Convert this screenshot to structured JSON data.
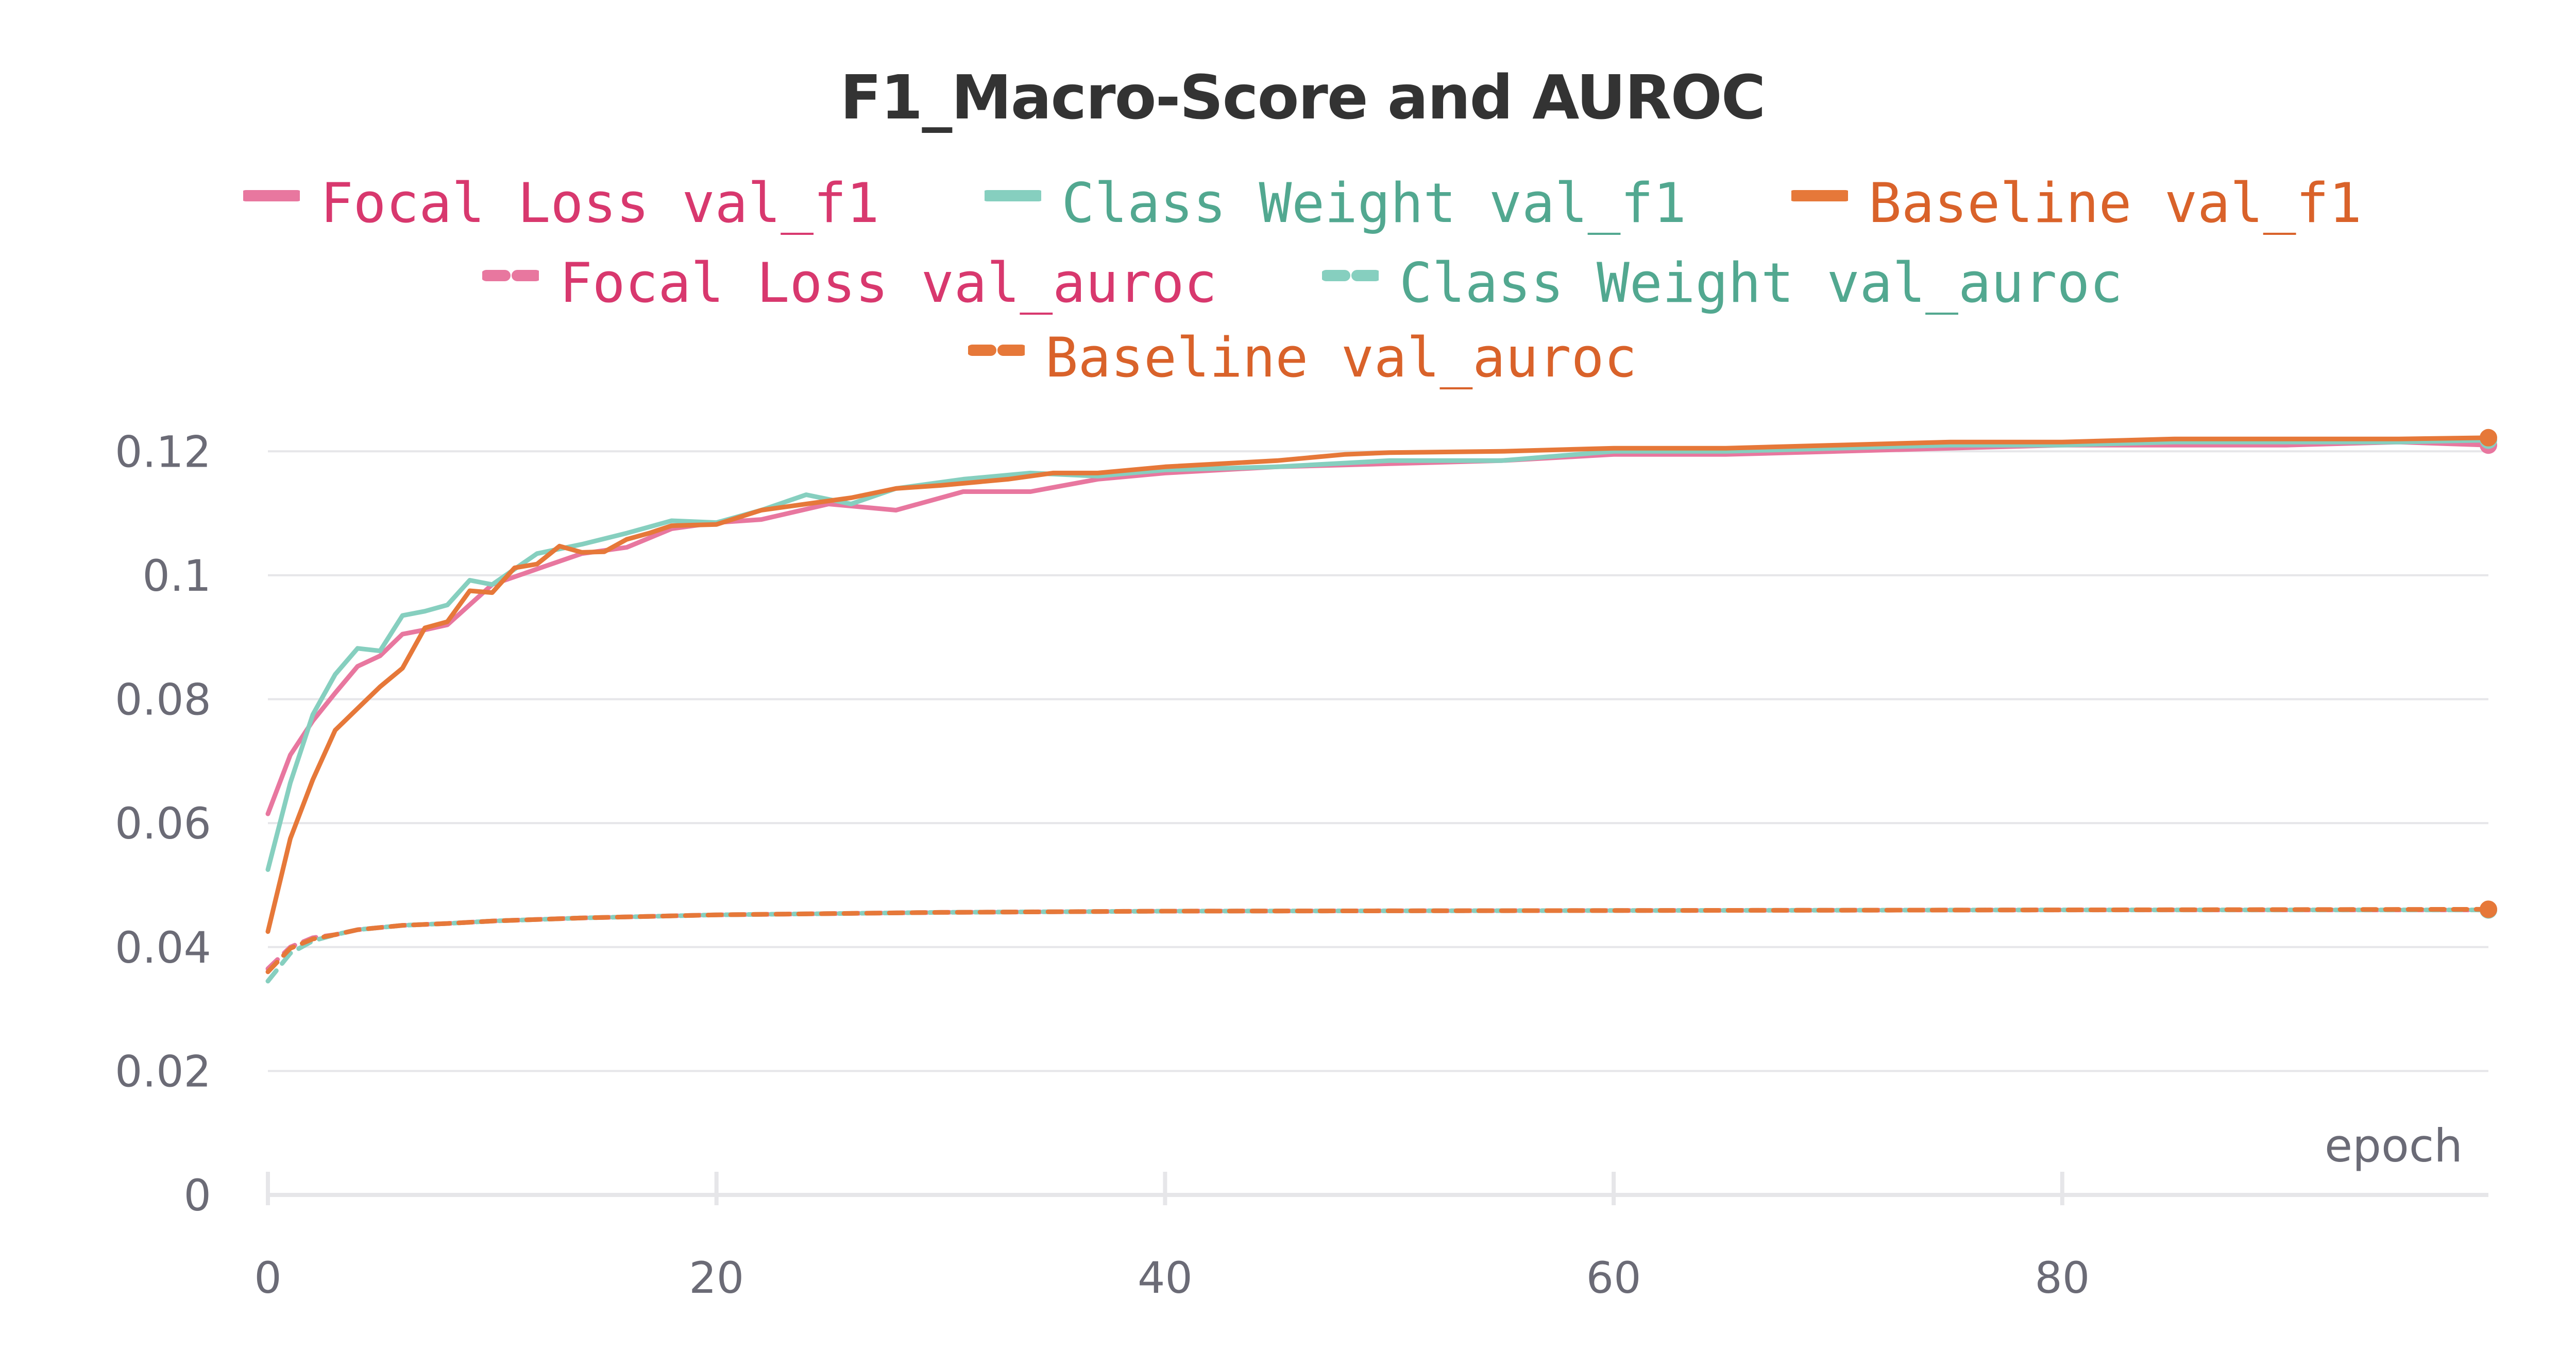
{
  "chart_data": {
    "type": "line",
    "title": "F1_Macro-Score and AUROC",
    "xlabel": "epoch",
    "ylabel": "",
    "xlim": [
      0,
      99
    ],
    "ylim": [
      0,
      0.128
    ],
    "x_ticks": [
      "0",
      "20",
      "40",
      "60",
      "80"
    ],
    "x_tick_values": [
      0,
      20,
      40,
      60,
      80
    ],
    "y_ticks": [
      "0",
      "0.02",
      "0.04",
      "0.06",
      "0.08",
      "0.1",
      "0.12"
    ],
    "y_tick_values": [
      0,
      0.02,
      0.04,
      0.06,
      0.08,
      0.1,
      0.12
    ],
    "grid": "horizontal",
    "legend_position": "top",
    "colors": {
      "focal": "#e8779f",
      "focal_text": "#d8386e",
      "class": "#86cfbf",
      "class_text": "#52a890",
      "baseline": "#e67839",
      "baseline_text": "#d9622a"
    },
    "series": [
      {
        "name": "Focal Loss val_f1",
        "color_key": "focal",
        "dash": false,
        "x": [
          0,
          1,
          2,
          3,
          4,
          5,
          6,
          7,
          8,
          10,
          12,
          14,
          16,
          18,
          20,
          22,
          25,
          28,
          31,
          34,
          37,
          40,
          45,
          50,
          55,
          60,
          65,
          70,
          75,
          80,
          85,
          90,
          95,
          99
        ],
        "y": [
          0.0615,
          0.071,
          0.0765,
          0.081,
          0.0853,
          0.087,
          0.0905,
          0.0912,
          0.092,
          0.0985,
          0.101,
          0.1035,
          0.1045,
          0.1075,
          0.1085,
          0.109,
          0.1115,
          0.1105,
          0.1135,
          0.1135,
          0.1155,
          0.1165,
          0.1175,
          0.118,
          0.1185,
          0.1195,
          0.1195,
          0.12,
          0.1205,
          0.121,
          0.121,
          0.121,
          0.1215,
          0.121
        ]
      },
      {
        "name": "Class Weight val_f1",
        "color_key": "class",
        "dash": false,
        "x": [
          0,
          1,
          2,
          3,
          4,
          5,
          6,
          7,
          8,
          9,
          10,
          12,
          14,
          16,
          18,
          20,
          22,
          24,
          26,
          28,
          31,
          34,
          37,
          40,
          45,
          50,
          55,
          60,
          65,
          70,
          75,
          80,
          85,
          90,
          95,
          99
        ],
        "y": [
          0.0525,
          0.0665,
          0.0775,
          0.084,
          0.0882,
          0.0878,
          0.0935,
          0.0942,
          0.0952,
          0.0992,
          0.0985,
          0.1035,
          0.105,
          0.1068,
          0.1088,
          0.1085,
          0.1105,
          0.113,
          0.1115,
          0.114,
          0.1155,
          0.1165,
          0.116,
          0.117,
          0.1175,
          0.1185,
          0.1185,
          0.12,
          0.12,
          0.1205,
          0.121,
          0.121,
          0.1215,
          0.1215,
          0.1215,
          0.1218
        ]
      },
      {
        "name": "Baseline val_f1",
        "color_key": "baseline",
        "dash": false,
        "x": [
          0,
          1,
          2,
          3,
          4,
          5,
          6,
          7,
          8,
          9,
          10,
          11,
          12,
          13,
          14,
          15,
          16,
          17,
          18,
          20,
          22,
          24,
          26,
          28,
          30,
          33,
          35,
          37,
          40,
          45,
          48,
          50,
          55,
          60,
          65,
          70,
          75,
          80,
          85,
          90,
          95,
          99
        ],
        "y": [
          0.0425,
          0.0575,
          0.067,
          0.075,
          0.0785,
          0.082,
          0.085,
          0.0915,
          0.0925,
          0.0975,
          0.0972,
          0.1012,
          0.1018,
          0.1047,
          0.1037,
          0.1038,
          0.1058,
          0.1068,
          0.108,
          0.1082,
          0.1105,
          0.1115,
          0.1125,
          0.114,
          0.1145,
          0.1155,
          0.1165,
          0.1165,
          0.1175,
          0.1185,
          0.1195,
          0.1198,
          0.12,
          0.1205,
          0.1205,
          0.121,
          0.1215,
          0.1215,
          0.122,
          0.122,
          0.122,
          0.1222
        ]
      },
      {
        "name": "Focal Loss val_auroc",
        "color_key": "focal",
        "dash": true,
        "x": [
          0,
          1,
          2,
          3,
          4,
          6,
          8,
          10,
          14,
          20,
          30,
          40,
          60,
          80,
          99
        ],
        "y": [
          0.0365,
          0.04,
          0.0415,
          0.042,
          0.0428,
          0.0435,
          0.0438,
          0.0442,
          0.0447,
          0.0452,
          0.0456,
          0.0458,
          0.0459,
          0.046,
          0.046
        ]
      },
      {
        "name": "Class Weight val_auroc",
        "color_key": "class",
        "dash": true,
        "x": [
          0,
          1,
          2,
          3,
          4,
          6,
          8,
          10,
          14,
          20,
          30,
          40,
          60,
          80,
          99
        ],
        "y": [
          0.0345,
          0.039,
          0.041,
          0.042,
          0.0428,
          0.0435,
          0.0438,
          0.0442,
          0.0447,
          0.0452,
          0.0456,
          0.0458,
          0.0459,
          0.046,
          0.046
        ]
      },
      {
        "name": "Baseline val_auroc",
        "color_key": "baseline",
        "dash": true,
        "x": [
          0,
          1,
          2,
          3,
          4,
          6,
          8,
          10,
          14,
          20,
          30,
          40,
          60,
          80,
          99
        ],
        "y": [
          0.036,
          0.0398,
          0.0413,
          0.042,
          0.0428,
          0.0435,
          0.0438,
          0.0442,
          0.0447,
          0.0452,
          0.0456,
          0.0458,
          0.0459,
          0.046,
          0.0461
        ]
      }
    ]
  }
}
